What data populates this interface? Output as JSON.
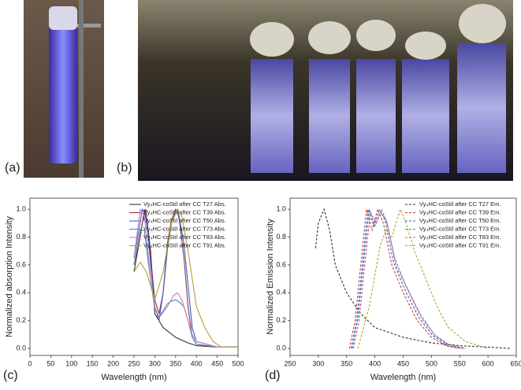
{
  "panel_labels": [
    "(a)",
    "(b)",
    "(c)",
    "(d)"
  ],
  "chart_data": [
    {
      "type": "line",
      "line_style": "solid",
      "x_label": "Wavelength (nm)",
      "y_label": "Normalized absorption Intensity",
      "xlim": [
        0,
        500
      ],
      "xticks": [
        0,
        50,
        100,
        150,
        200,
        250,
        300,
        350,
        400,
        450,
        500
      ],
      "ylim": [
        -0.05,
        1.08
      ],
      "yticks": [
        {
          "value": 0,
          "label": "0.0"
        },
        0.2,
        0.4,
        0.6,
        0.8,
        {
          "value": 1,
          "label": "1.0"
        }
      ],
      "series": [
        {
          "name": "Vy₄HC-coStil after CC T27 Abs.",
          "color": "#333333",
          "x": [
            250,
            260,
            270,
            278,
            290,
            300,
            320,
            350,
            380,
            400,
            450,
            500
          ],
          "values": [
            0.55,
            0.72,
            0.9,
            1.0,
            0.7,
            0.25,
            0.15,
            0.08,
            0.04,
            0.02,
            0.01,
            0.01
          ]
        },
        {
          "name": "Vy₄HC-coStil after CC T39 Abs.",
          "color": "#8b3a3a",
          "x": [
            250,
            265,
            275,
            285,
            300,
            310,
            320,
            330,
            340,
            350,
            355,
            360,
            370,
            380,
            390,
            400,
            450,
            500
          ],
          "values": [
            0.6,
            0.8,
            1.0,
            0.8,
            0.35,
            0.25,
            0.4,
            0.75,
            0.92,
            1.0,
            0.98,
            0.9,
            0.65,
            0.3,
            0.08,
            0.03,
            0.01,
            0.01
          ]
        },
        {
          "name": "Vy₄HC-coStil after CC T50 Abs.",
          "color": "#3a5fcd",
          "x": [
            250,
            270,
            280,
            290,
            300,
            310,
            320,
            330,
            340,
            350,
            355,
            360,
            370,
            380,
            390,
            400,
            450,
            500
          ],
          "values": [
            0.65,
            1.0,
            0.95,
            0.6,
            0.3,
            0.2,
            0.4,
            0.7,
            0.9,
            0.98,
            1.0,
            0.92,
            0.75,
            0.45,
            0.15,
            0.05,
            0.01,
            0.01
          ]
        },
        {
          "name": "Vy₄HC-coStil after CC T73 Abs.",
          "color": "#3f8fa8",
          "x": [
            250,
            265,
            275,
            285,
            300,
            310,
            320,
            330,
            340,
            350,
            360,
            370,
            380,
            390,
            400,
            450,
            500
          ],
          "values": [
            0.6,
            0.85,
            0.85,
            0.6,
            0.28,
            0.23,
            0.27,
            0.32,
            0.34,
            0.35,
            0.33,
            0.3,
            0.2,
            0.08,
            0.03,
            0.01,
            0.01
          ]
        },
        {
          "name": "Vy₄HC-coStil after CC T83 Abs.",
          "color": "#c878c8",
          "x": [
            250,
            265,
            275,
            290,
            300,
            310,
            330,
            345,
            355,
            365,
            375,
            390,
            400,
            450,
            500
          ],
          "values": [
            0.65,
            1.0,
            0.95,
            0.5,
            0.3,
            0.22,
            0.3,
            0.38,
            0.4,
            0.35,
            0.25,
            0.1,
            0.05,
            0.01,
            0.01
          ]
        },
        {
          "name": "Vy₄HC-coStil after CC T91 Abs.",
          "color": "#b8a030",
          "x": [
            250,
            265,
            280,
            290,
            300,
            320,
            340,
            355,
            365,
            380,
            400,
            420,
            440,
            460,
            500
          ],
          "values": [
            0.55,
            0.62,
            0.55,
            0.45,
            0.35,
            0.55,
            0.9,
            1.0,
            0.95,
            0.7,
            0.3,
            0.15,
            0.05,
            0.01,
            0.01
          ]
        }
      ]
    },
    {
      "type": "line",
      "line_style": "dashed",
      "x_label": "Wavelength (nm)",
      "y_label": "Normalized Emission Intensity",
      "xlim": [
        250,
        650
      ],
      "xticks": [
        250,
        300,
        350,
        400,
        450,
        500,
        550,
        600,
        650
      ],
      "ylim": [
        -0.05,
        1.08
      ],
      "yticks": [
        {
          "value": 0,
          "label": "0.0"
        },
        0.2,
        0.4,
        0.6,
        0.8,
        {
          "value": 1,
          "label": "1.0"
        }
      ],
      "series": [
        {
          "name": "Vy₄HC-coStil after CC T27 Em.",
          "color": "#333333",
          "x": [
            295,
            300,
            310,
            320,
            330,
            340,
            350,
            375,
            400,
            450,
            500,
            550,
            600,
            640
          ],
          "values": [
            0.72,
            0.9,
            1.0,
            0.85,
            0.6,
            0.5,
            0.4,
            0.25,
            0.15,
            0.08,
            0.04,
            0.02,
            0.01,
            0
          ]
        },
        {
          "name": "Vy₄HC-coStil after CC T39 Em.",
          "color": "#c84040",
          "x": [
            355,
            365,
            375,
            385,
            395,
            405,
            415,
            430,
            450,
            475,
            500,
            525,
            550
          ],
          "values": [
            0,
            0.2,
            0.6,
            1.0,
            0.85,
            1.0,
            0.9,
            0.6,
            0.4,
            0.2,
            0.08,
            0.02,
            0
          ]
        },
        {
          "name": "Vy₄HC-coStil after CC T50 Em.",
          "color": "#3a5fcd",
          "x": [
            358,
            368,
            378,
            388,
            398,
            408,
            418,
            433,
            453,
            478,
            503,
            528,
            555
          ],
          "values": [
            0,
            0.2,
            0.6,
            1.0,
            0.88,
            1.0,
            0.92,
            0.62,
            0.42,
            0.22,
            0.09,
            0.02,
            0
          ]
        },
        {
          "name": "Vy₄HC-coStil after CC T73 Em.",
          "color": "#3f8fa8",
          "x": [
            360,
            370,
            380,
            390,
            400,
            410,
            420,
            435,
            455,
            480,
            505,
            530,
            560
          ],
          "values": [
            0,
            0.22,
            0.62,
            1.0,
            0.88,
            0.98,
            0.92,
            0.65,
            0.45,
            0.25,
            0.1,
            0.03,
            0
          ]
        },
        {
          "name": "Vy₄HC-coStil after CC T83 Em.",
          "color": "#d05080",
          "x": [
            362,
            372,
            382,
            392,
            402,
            412,
            422,
            437,
            457,
            482,
            507,
            532,
            560
          ],
          "values": [
            0,
            0.2,
            0.6,
            0.98,
            0.9,
            1.0,
            0.9,
            0.6,
            0.43,
            0.22,
            0.09,
            0.02,
            0
          ]
        },
        {
          "name": "Vy₄HC-coStil after CC T91 Em.",
          "color": "#b8a030",
          "x": [
            370,
            390,
            410,
            420,
            430,
            445,
            455,
            470,
            490,
            510,
            530,
            560,
            600
          ],
          "values": [
            0,
            0.3,
            0.75,
            0.85,
            0.8,
            1.0,
            0.9,
            0.7,
            0.5,
            0.3,
            0.15,
            0.05,
            0
          ]
        }
      ]
    }
  ]
}
